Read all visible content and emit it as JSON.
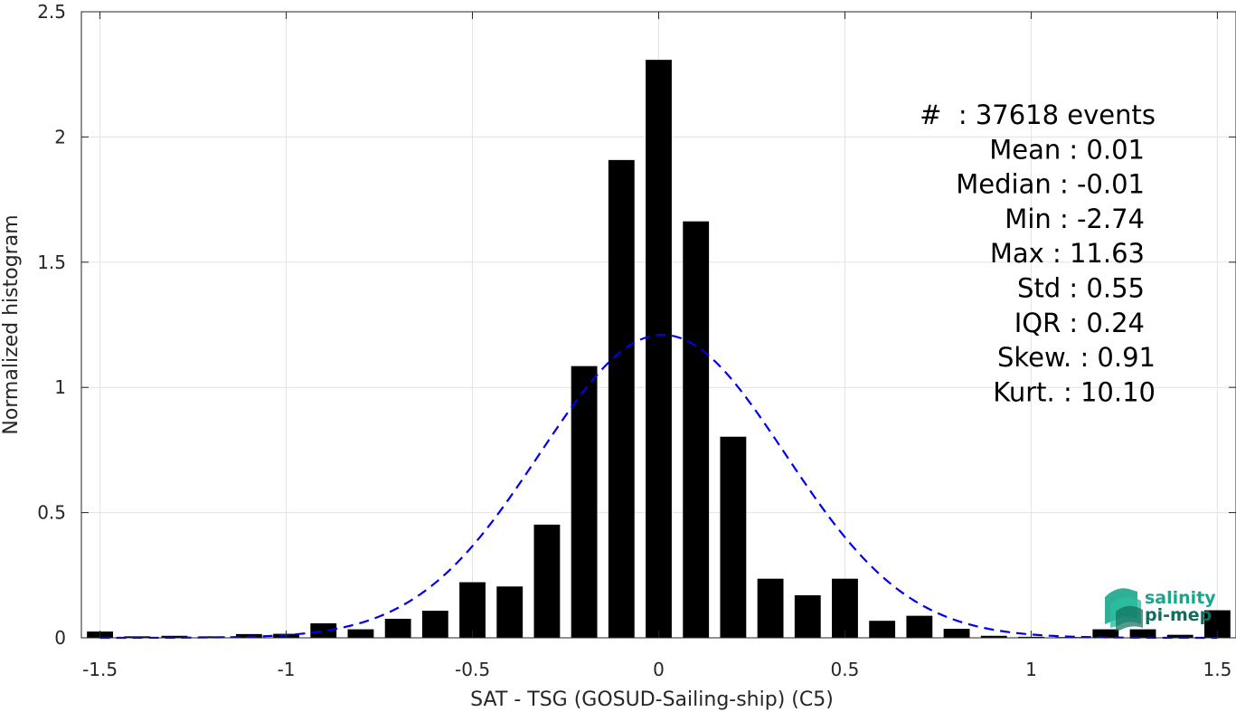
{
  "chart_data": {
    "type": "bar",
    "xlabel": "SAT - TSG (GOSUD-Sailing-ship) (C5)",
    "ylabel": "Normalized histogram",
    "xlim": [
      -1.55,
      1.55
    ],
    "ylim": [
      0,
      2.5
    ],
    "grid": true,
    "x_ticks": [
      -1.5,
      -1,
      -0.5,
      0,
      0.5,
      1,
      1.5
    ],
    "x_tick_labels": [
      "-1.5",
      "-1",
      "-0.5",
      "0",
      "0.5",
      "1",
      "1.5"
    ],
    "y_ticks": [
      0,
      0.5,
      1,
      1.5,
      2,
      2.5
    ],
    "y_tick_labels": [
      "0",
      "0.5",
      "1",
      "1.5",
      "2",
      "2.5"
    ],
    "bin_width": 0.1,
    "bars": {
      "color": "#000000",
      "x": [
        -1.5,
        -1.4,
        -1.3,
        -1.2,
        -1.1,
        -1.0,
        -0.9,
        -0.8,
        -0.7,
        -0.6,
        -0.5,
        -0.4,
        -0.3,
        -0.2,
        -0.1,
        0.0,
        0.1,
        0.2,
        0.3,
        0.4,
        0.5,
        0.6,
        0.7,
        0.8,
        0.9,
        1.0,
        1.1,
        1.2,
        1.3,
        1.4,
        1.5
      ],
      "values": [
        0.025,
        0.006,
        0.008,
        0.006,
        0.015,
        0.016,
        0.058,
        0.034,
        0.076,
        0.108,
        0.222,
        0.205,
        0.452,
        1.085,
        1.908,
        2.308,
        1.663,
        0.803,
        0.236,
        0.17,
        0.236,
        0.068,
        0.088,
        0.036,
        0.008,
        0.004,
        0.003,
        0.034,
        0.034,
        0.012,
        0.11
      ]
    },
    "fit_curve": {
      "type": "gaussian",
      "style": "dashed",
      "color": "#0000ee",
      "mean": 0.01,
      "std": 0.33,
      "peak": 1.21
    },
    "stats": [
      "#  : 37618 events",
      "Mean : 0.01",
      "Median : -0.01",
      "Min : -2.74",
      "Max : 11.63",
      "Std : 0.55",
      "IQR : 0.24",
      "Skew. : 0.91",
      "Kurt. : 10.10"
    ]
  },
  "logo": {
    "line1": "salinity",
    "line2": "pi-mep",
    "color1": "#1aa68c",
    "color2": "#0f6e5c"
  }
}
